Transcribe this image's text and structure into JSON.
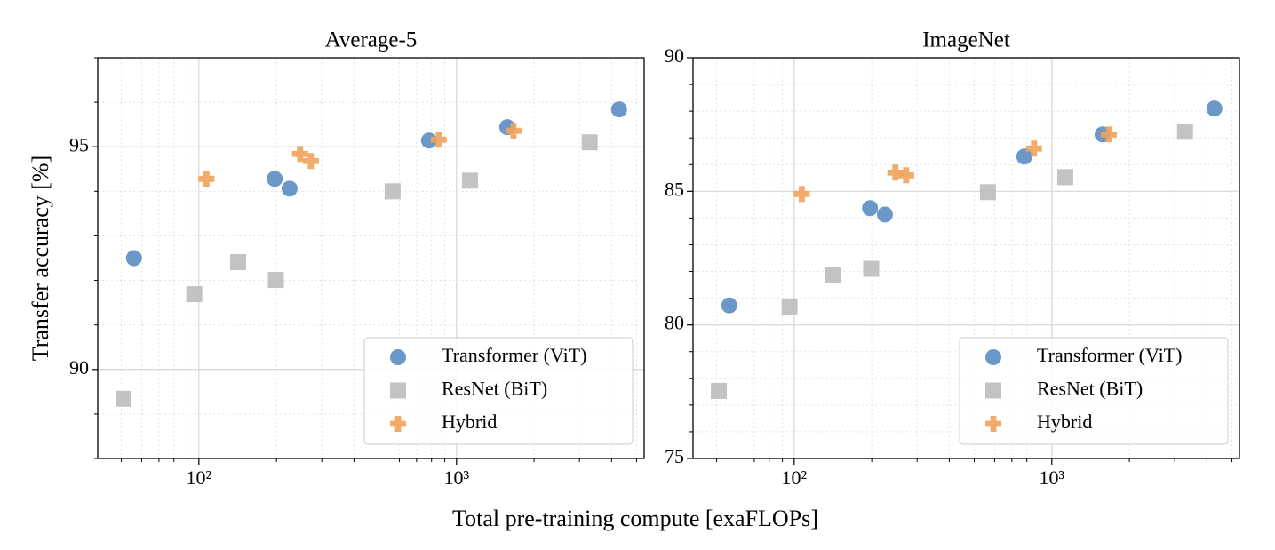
{
  "xlabel": "Total pre-training compute [exaFLOPs]",
  "chart_data": [
    {
      "type": "scatter",
      "title": "Average-5",
      "ylabel": "Transfer accuracy [%]",
      "xscale": "log",
      "grid": true,
      "legend": "lower right",
      "xlim": [
        40.5,
        5350
      ],
      "xticks": [
        {
          "value": 100,
          "label": "10²"
        },
        {
          "value": 1000,
          "label": "10³"
        }
      ],
      "xminorticks": [
        50,
        60,
        70,
        80,
        90,
        200,
        300,
        400,
        500,
        600,
        700,
        800,
        900,
        2000,
        3000,
        4000,
        5000
      ],
      "ylim": [
        88,
        97
      ],
      "yticks": [
        90,
        95
      ],
      "yminorticks": [
        88,
        89,
        91,
        92,
        93,
        94,
        96,
        97
      ],
      "series": [
        {
          "name": "Transformer (ViT)",
          "color": "#5b8dc2",
          "marker": "circle",
          "x": [
            56,
            197,
            225,
            782,
            1574,
            4276
          ],
          "values": [
            92.5,
            94.28,
            94.06,
            95.14,
            95.44,
            95.84
          ]
        },
        {
          "name": "ResNet (BiT)",
          "color": "#bdbdbd",
          "marker": "square",
          "x": [
            51,
            96,
            142,
            199,
            565,
            1128,
            3289
          ],
          "values": [
            89.34,
            91.69,
            92.41,
            92.01,
            94.0,
            94.24,
            95.1
          ]
        },
        {
          "name": "Hybrid",
          "color": "#f0a25a",
          "marker": "plus",
          "x": [
            107,
            247,
            272,
            853,
            1664
          ],
          "values": [
            94.28,
            94.84,
            94.68,
            95.16,
            95.36
          ]
        }
      ]
    },
    {
      "type": "scatter",
      "title": "ImageNet",
      "xscale": "log",
      "grid": true,
      "legend": "lower right",
      "xlim": [
        40.5,
        5350
      ],
      "xticks": [
        {
          "value": 100,
          "label": "10²"
        },
        {
          "value": 1000,
          "label": "10³"
        }
      ],
      "xminorticks": [
        50,
        60,
        70,
        80,
        90,
        200,
        300,
        400,
        500,
        600,
        700,
        800,
        900,
        2000,
        3000,
        4000,
        5000
      ],
      "ylim": [
        75,
        90
      ],
      "yticks": [
        75,
        80,
        85,
        90
      ],
      "yminorticks": [
        76,
        77,
        78,
        79,
        81,
        82,
        83,
        84,
        86,
        87,
        88,
        89
      ],
      "series": [
        {
          "name": "Transformer (ViT)",
          "color": "#5b8dc2",
          "marker": "circle",
          "x": [
            56,
            197,
            225,
            782,
            1574,
            4276
          ],
          "values": [
            80.73,
            84.37,
            84.13,
            86.3,
            87.13,
            88.1
          ]
        },
        {
          "name": "ResNet (BiT)",
          "color": "#bdbdbd",
          "marker": "square",
          "x": [
            51,
            96,
            142,
            199,
            565,
            1128,
            3289
          ],
          "values": [
            77.53,
            80.67,
            81.87,
            82.1,
            84.97,
            85.53,
            87.23
          ]
        },
        {
          "name": "Hybrid",
          "color": "#f0a25a",
          "marker": "plus",
          "x": [
            107,
            247,
            272,
            853,
            1664
          ],
          "values": [
            84.9,
            85.7,
            85.6,
            86.6,
            87.13
          ]
        }
      ]
    }
  ]
}
